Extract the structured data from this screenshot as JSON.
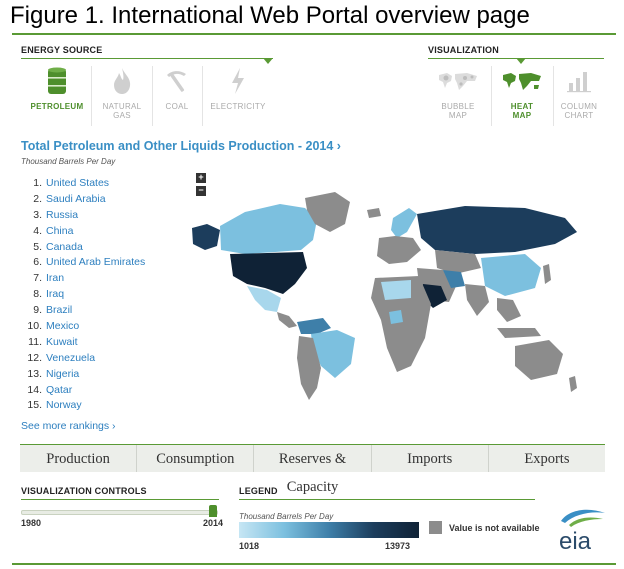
{
  "figure_title": "Figure 1. International  Web Portal overview page",
  "energy_source": {
    "heading": "ENERGY SOURCE",
    "items": [
      {
        "label_l1": "PETROLEUM",
        "label_l2": "",
        "icon": "oil-barrel-icon",
        "active": true
      },
      {
        "label_l1": "NATURAL",
        "label_l2": "GAS",
        "icon": "flame-icon",
        "active": false
      },
      {
        "label_l1": "COAL",
        "label_l2": "",
        "icon": "pickaxe-icon",
        "active": false
      },
      {
        "label_l1": "ELECTRICITY",
        "label_l2": "",
        "icon": "lightning-icon",
        "active": false
      }
    ]
  },
  "visualization": {
    "heading": "VISUALIZATION",
    "items": [
      {
        "label_l1": "BUBBLE",
        "label_l2": "MAP",
        "icon": "bubble-map-icon",
        "active": false
      },
      {
        "label_l1": "HEAT",
        "label_l2": "MAP",
        "icon": "heat-map-icon",
        "active": true
      },
      {
        "label_l1": "COLUMN",
        "label_l2": "CHART",
        "icon": "column-chart-icon",
        "active": false
      }
    ]
  },
  "chart": {
    "title": "Total Petroleum and Other Liquids Production - 2014 ›",
    "subtitle": "Thousand Barrels Per Day"
  },
  "rankings": [
    {
      "rank": "1.",
      "country": "United States"
    },
    {
      "rank": "2.",
      "country": "Saudi Arabia"
    },
    {
      "rank": "3.",
      "country": "Russia"
    },
    {
      "rank": "4.",
      "country": "China"
    },
    {
      "rank": "5.",
      "country": "Canada"
    },
    {
      "rank": "6.",
      "country": "United Arab Emirates"
    },
    {
      "rank": "7.",
      "country": "Iran"
    },
    {
      "rank": "8.",
      "country": "Iraq"
    },
    {
      "rank": "9.",
      "country": "Brazil"
    },
    {
      "rank": "10.",
      "country": "Mexico"
    },
    {
      "rank": "11.",
      "country": "Kuwait"
    },
    {
      "rank": "12.",
      "country": "Venezuela"
    },
    {
      "rank": "13.",
      "country": "Nigeria"
    },
    {
      "rank": "14.",
      "country": "Qatar"
    },
    {
      "rank": "15.",
      "country": "Norway"
    }
  ],
  "see_more": "See more rankings ›",
  "zoom": {
    "in": "+",
    "out": "−"
  },
  "tabs": [
    "Production",
    "Consumption",
    "Reserves & Capacity",
    "Imports",
    "Exports"
  ],
  "controls": {
    "heading": "VISUALIZATION CONTROLS",
    "year_start": "1980",
    "year_end": "2014",
    "slider_value_fraction": 1.0
  },
  "legend": {
    "heading": "LEGEND",
    "unit": "Thousand Barrels Per Day",
    "min": "1018",
    "max": "13973",
    "na_label": "Value is not available"
  },
  "colors": {
    "accent": "#5a9a35",
    "link": "#2d7fbf",
    "scale_low": "#c6e6f4",
    "scale_high": "#0f2236",
    "not_available": "#8c8c8c"
  },
  "logo_text": "eia"
}
